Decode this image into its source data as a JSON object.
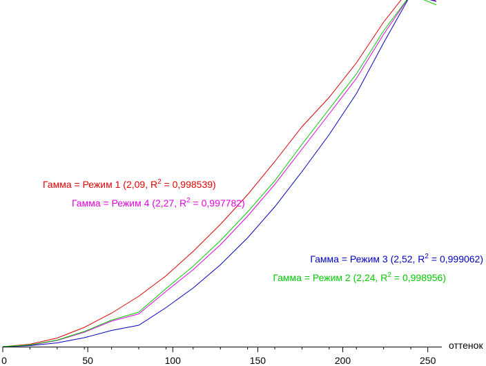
{
  "chart_data": {
    "type": "line",
    "xlabel": "оттенок",
    "ylabel": "",
    "xlim": [
      0,
      255
    ],
    "ylim": [
      0,
      1
    ],
    "x_ticks": [
      0,
      50,
      100,
      150,
      200,
      250
    ],
    "tick_labels": [
      "0",
      "50",
      "100",
      "150",
      "200",
      "250"
    ],
    "grid": false,
    "x": [
      0,
      16,
      32,
      48,
      64,
      80,
      96,
      112,
      128,
      144,
      160,
      176,
      192,
      208,
      224,
      240,
      255
    ],
    "series": [
      {
        "name": "Режим 1",
        "gamma": "2,09",
        "r2": "0,998539",
        "label_prefix": "Гамма = Режим 1 (2,09, R",
        "label_suffix": " = 0,998539)",
        "color": "#e00000",
        "values": [
          0,
          0.007,
          0.025,
          0.056,
          0.097,
          0.146,
          0.205,
          0.276,
          0.354,
          0.44,
          0.536,
          0.637,
          0.722,
          0.822,
          0.94,
          1.04,
          1.0
        ]
      },
      {
        "name": "Режим 4",
        "gamma": "2,27",
        "r2": "0,997782",
        "label_prefix": "Гамма = Режим 4 (2,27, R",
        "label_suffix": " = 0,997782)",
        "color": "#e000e0",
        "values": [
          0,
          0.004,
          0.018,
          0.042,
          0.074,
          0.095,
          0.16,
          0.223,
          0.295,
          0.378,
          0.47,
          0.572,
          0.674,
          0.777,
          0.905,
          1.02,
          1.0
        ]
      },
      {
        "name": "Режим 3",
        "gamma": "2,52",
        "r2": "0,999062",
        "label_prefix": "Гамма = Режим 3 (2,52, R",
        "label_suffix": " = 0,999062)",
        "color": "#0000c0",
        "values": [
          0,
          0.003,
          0.011,
          0.026,
          0.047,
          0.062,
          0.113,
          0.17,
          0.237,
          0.315,
          0.405,
          0.507,
          0.614,
          0.733,
          0.88,
          1.02,
          1.0
        ]
      },
      {
        "name": "Режим 2",
        "gamma": "2,24",
        "r2": "0,998956",
        "label_prefix": "Гамма = Режим 2 (2,24, R",
        "label_suffix": " = 0,998956)",
        "color": "#00c800",
        "values": [
          0,
          0.005,
          0.019,
          0.044,
          0.077,
          0.1,
          0.168,
          0.233,
          0.307,
          0.39,
          0.48,
          0.586,
          0.688,
          0.79,
          0.915,
          1.02,
          0.99
        ]
      }
    ],
    "legend_superscript": "2"
  }
}
